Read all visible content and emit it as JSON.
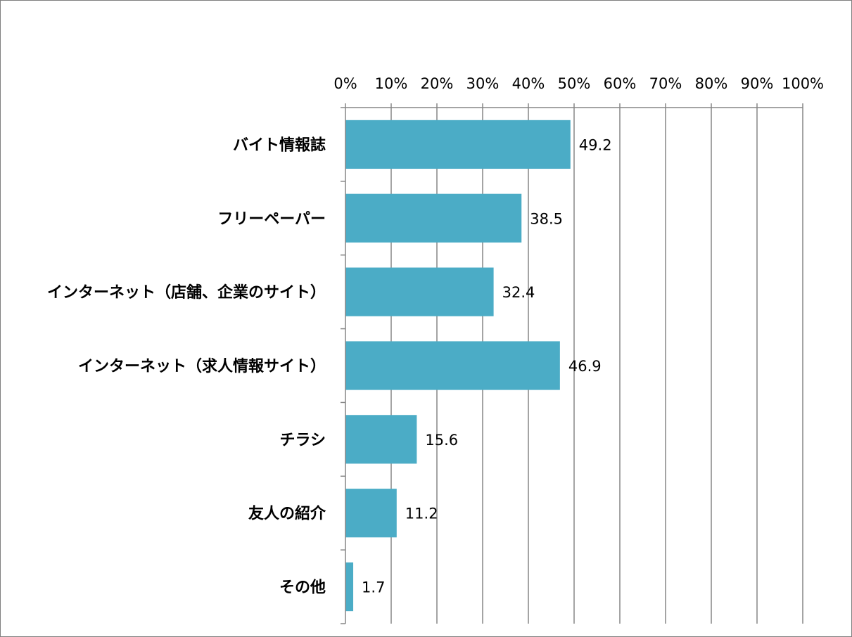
{
  "chart_data": {
    "type": "bar",
    "orientation": "horizontal",
    "categories": [
      "バイト情報誌",
      "フリーペーパー",
      "インターネット（店舗、企業のサイト）",
      "インターネット（求人情報サイト）",
      "チラシ",
      "友人の紹介",
      "その他"
    ],
    "values": [
      49.2,
      38.5,
      32.4,
      46.9,
      15.6,
      11.2,
      1.7
    ],
    "data_labels": [
      "49.2",
      "38.5",
      "32.4",
      "46.9",
      "15.6",
      "11.2",
      "1.7"
    ],
    "x_ticks": [
      "0%",
      "10%",
      "20%",
      "30%",
      "40%",
      "50%",
      "60%",
      "70%",
      "80%",
      "90%",
      "100%"
    ],
    "xlim": [
      0,
      100
    ],
    "x_axis_position": "top",
    "grid": "vertical",
    "legend": "none",
    "bar_color": "#4bacc6",
    "title": "",
    "xlabel": "",
    "ylabel": ""
  }
}
